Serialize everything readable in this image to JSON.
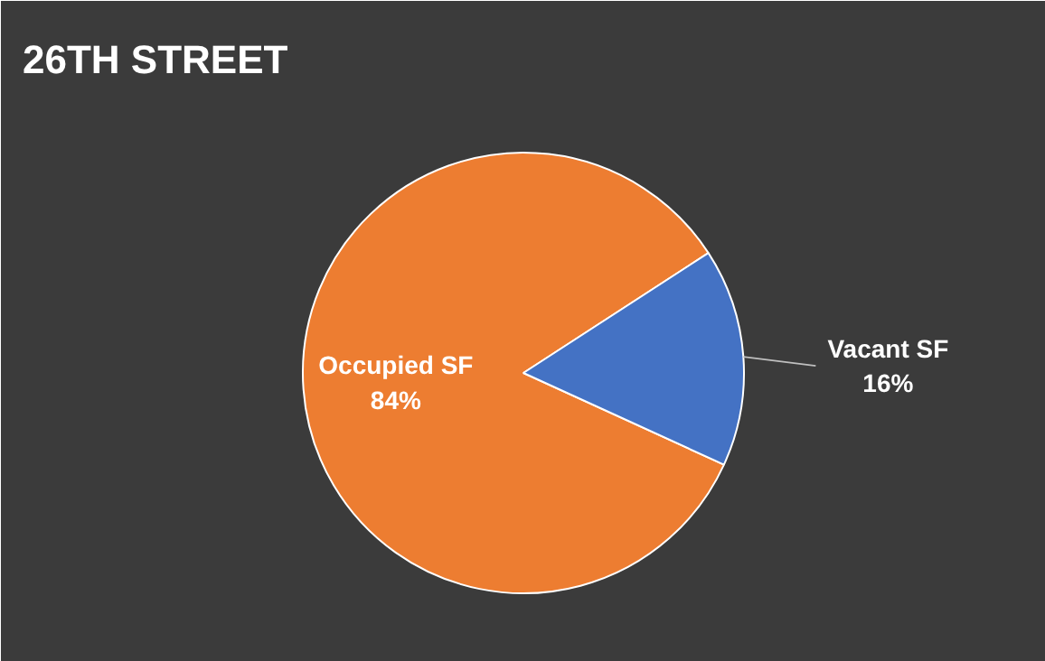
{
  "chart_data": {
    "type": "pie",
    "title": "26TH STREET",
    "categories": [
      "Occupied SF",
      "Vacant SF"
    ],
    "values": [
      84,
      16
    ],
    "colors": [
      "#ed7d31",
      "#4472c4"
    ],
    "value_labels": [
      "84%",
      "16%"
    ]
  }
}
